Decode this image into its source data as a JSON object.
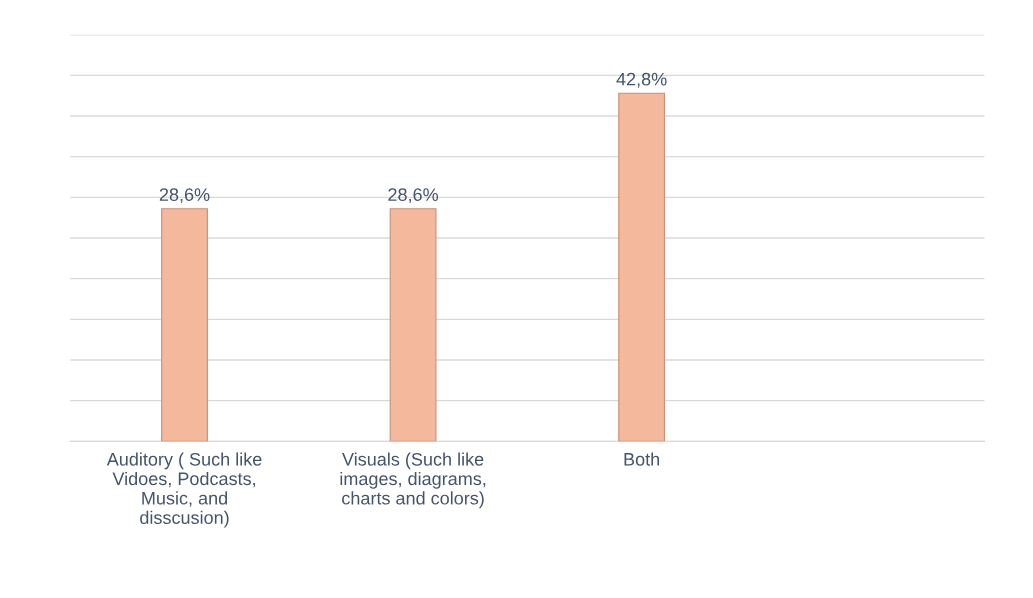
{
  "chart_data": {
    "type": "bar",
    "categories": [
      "Auditory ( Such like\nVidoes, Podcasts,\nMusic, and\ndisscusion)",
      "Visuals (Such like\nimages, diagrams,\ncharts and colors)",
      "Both",
      null
    ],
    "values": [
      28.6,
      28.6,
      42.8,
      null
    ],
    "value_labels": [
      "28,6%",
      "28,6%",
      "42,8%",
      null
    ],
    "color": "#f4b89c",
    "ylim": [
      0,
      50
    ],
    "yticks": [
      {
        "value": 0,
        "label": null
      },
      {
        "value": 5,
        "label": null
      },
      {
        "value": 10,
        "label": null
      },
      {
        "value": 15,
        "label": null
      },
      {
        "value": 20,
        "label": null
      },
      {
        "value": 25,
        "label": null
      },
      {
        "value": 30,
        "label": null
      },
      {
        "value": 35,
        "label": null
      },
      {
        "value": 40,
        "label": null
      },
      {
        "value": 45,
        "label": null
      },
      {
        "value": 50,
        "label": null
      }
    ],
    "tick_labels": "x",
    "grid": "y",
    "legend": false
  }
}
